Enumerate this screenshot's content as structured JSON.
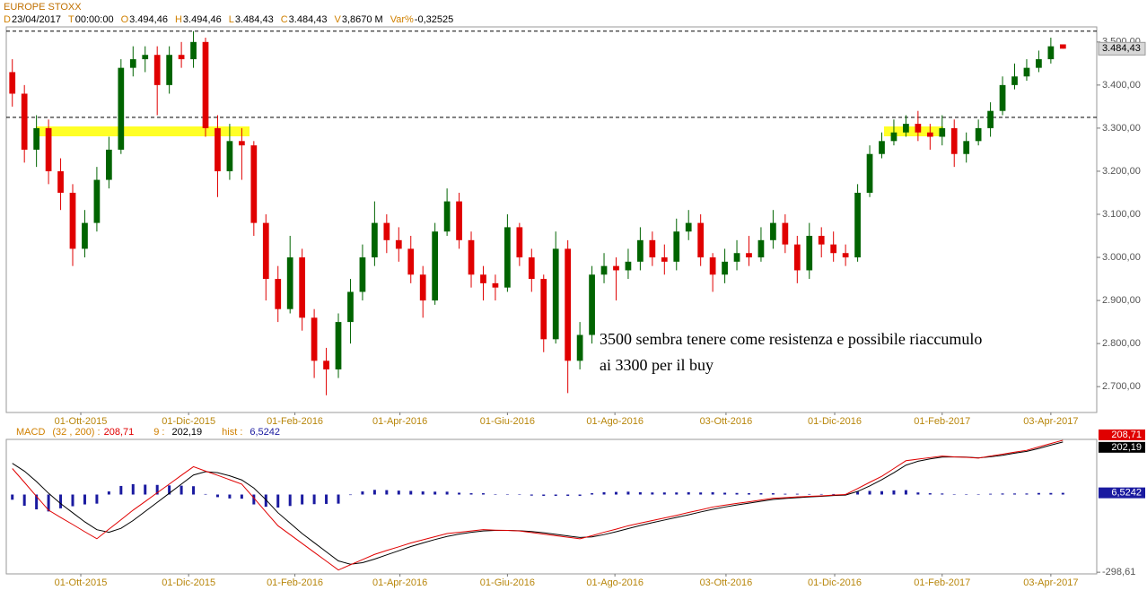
{
  "header": {
    "title": "EUROPE STOXX",
    "fields": [
      {
        "key": "D",
        "value": "23/04/2017"
      },
      {
        "key": "T",
        "value": "00:00:00"
      },
      {
        "key": "O",
        "value": "3.494,46"
      },
      {
        "key": "H",
        "value": "3.494,46"
      },
      {
        "key": "L",
        "value": "3.484,43"
      },
      {
        "key": "C",
        "value": "3.484,43"
      },
      {
        "key": "V",
        "value": "3,8670 M"
      },
      {
        "key": "Var%",
        "value": "-0,32525"
      }
    ]
  },
  "chart_data": [
    {
      "type": "candlestick",
      "up_color": "#006400",
      "down_color": "#e00000",
      "xlim": [
        -0.5,
        89.8
      ],
      "ylim": [
        2640,
        3535
      ],
      "xticks": [
        {
          "value": 5.67,
          "label": "01-Ott-2015"
        },
        {
          "value": 14.6,
          "label": "01-Dic-2015"
        },
        {
          "value": 23.4,
          "label": "01-Feb-2016"
        },
        {
          "value": 32.1,
          "label": "01-Apr-2016"
        },
        {
          "value": 41.0,
          "label": "01-Giu-2016"
        },
        {
          "value": 49.9,
          "label": "01-Ago-2016"
        },
        {
          "value": 59.1,
          "label": "03-Ott-2016"
        },
        {
          "value": 68.1,
          "label": "01-Dic-2016"
        },
        {
          "value": 77.0,
          "label": "01-Feb-2017"
        },
        {
          "value": 86.0,
          "label": "03-Apr-2017"
        }
      ],
      "yticks": [
        {
          "value": 2700,
          "label": "2.700,00"
        },
        {
          "value": 2800,
          "label": "2.800,00"
        },
        {
          "value": 2900,
          "label": "2.900,00"
        },
        {
          "value": 3000,
          "label": "3.000,00"
        },
        {
          "value": 3100,
          "label": "3.100,00"
        },
        {
          "value": 3200,
          "label": "3.200,00"
        },
        {
          "value": 3300,
          "label": "3.300,00"
        },
        {
          "value": 3400,
          "label": "3.400,00"
        },
        {
          "value": 3500,
          "label": "3.500,00"
        }
      ],
      "levels": [
        3525,
        3325
      ],
      "last_label": "3.484,43",
      "annotation": [
        "3500 sembra tenere come resistenza e possibile riaccumulo",
        "ai 3300 per il buy"
      ],
      "open": [
        3430,
        3380,
        3250,
        3300,
        3200,
        3150,
        3020,
        3080,
        3180,
        3250,
        3440,
        3460,
        3470,
        3400,
        3470,
        3460,
        3500,
        3300,
        3200,
        3270,
        3260,
        3080,
        2950,
        2880,
        3000,
        2860,
        2760,
        2740,
        2850,
        2920,
        3000,
        3080,
        3040,
        3020,
        2960,
        2900,
        3060,
        3130,
        3040,
        2960,
        2940,
        2930,
        3070,
        3000,
        2950,
        2810,
        3020,
        2760,
        2820,
        2960,
        2980,
        2970,
        2990,
        3040,
        3000,
        2990,
        3060,
        3080,
        3000,
        2960,
        2990,
        3010,
        3000,
        3040,
        3080,
        3030,
        2970,
        3050,
        3030,
        3010,
        3000,
        3150,
        3240,
        3270,
        3290,
        3310,
        3290,
        3280,
        3300,
        3240,
        3270,
        3300,
        3340,
        3400,
        3420,
        3440,
        3460,
        3494.46
      ],
      "high": [
        3460,
        3400,
        3330,
        3320,
        3230,
        3170,
        3110,
        3210,
        3280,
        3460,
        3490,
        3490,
        3490,
        3490,
        3500,
        3525,
        3510,
        3330,
        3310,
        3300,
        3270,
        3100,
        2980,
        3050,
        3020,
        2880,
        2790,
        2870,
        2950,
        3030,
        3130,
        3100,
        3070,
        3050,
        2980,
        3080,
        3160,
        3150,
        3060,
        2980,
        2960,
        3100,
        3080,
        3020,
        2960,
        3060,
        3040,
        2850,
        2980,
        3010,
        3000,
        3020,
        3070,
        3060,
        3030,
        3090,
        3110,
        3100,
        3010,
        3020,
        3040,
        3050,
        3070,
        3110,
        3100,
        3050,
        3080,
        3070,
        3060,
        3030,
        3170,
        3260,
        3290,
        3320,
        3330,
        3340,
        3310,
        3330,
        3320,
        3290,
        3320,
        3360,
        3420,
        3450,
        3460,
        3480,
        3510,
        3494.46
      ],
      "low": [
        3350,
        3220,
        3210,
        3170,
        3110,
        2980,
        3000,
        3060,
        3160,
        3240,
        3420,
        3430,
        3330,
        3380,
        3440,
        3440,
        3280,
        3140,
        3180,
        3180,
        3050,
        2900,
        2850,
        2870,
        2830,
        2720,
        2680,
        2720,
        2800,
        2900,
        2980,
        3010,
        2990,
        2940,
        2860,
        2890,
        3050,
        3020,
        2930,
        2900,
        2900,
        2920,
        2980,
        2920,
        2780,
        2800,
        2685,
        2740,
        2800,
        2940,
        2900,
        2950,
        2970,
        2980,
        2960,
        2970,
        3040,
        2980,
        2920,
        2940,
        2970,
        2980,
        2990,
        3020,
        3010,
        2940,
        2950,
        3000,
        2990,
        2980,
        2990,
        3140,
        3230,
        3260,
        3280,
        3270,
        3250,
        3260,
        3210,
        3220,
        3260,
        3280,
        3330,
        3390,
        3410,
        3430,
        3450,
        3484.43
      ],
      "close": [
        3380,
        3250,
        3300,
        3200,
        3150,
        3020,
        3080,
        3180,
        3250,
        3440,
        3460,
        3470,
        3400,
        3470,
        3460,
        3500,
        3300,
        3200,
        3270,
        3260,
        3080,
        2950,
        2880,
        3000,
        2860,
        2760,
        2740,
        2850,
        2920,
        3000,
        3080,
        3040,
        3020,
        2960,
        2900,
        3060,
        3130,
        3040,
        2960,
        2940,
        2930,
        3070,
        3000,
        2950,
        2810,
        3020,
        2760,
        2820,
        2960,
        2980,
        2970,
        2990,
        3040,
        3000,
        2990,
        3060,
        3080,
        3000,
        2960,
        2990,
        3010,
        3000,
        3040,
        3080,
        3030,
        2970,
        3050,
        3030,
        3010,
        3000,
        3150,
        3240,
        3270,
        3290,
        3310,
        3290,
        3280,
        3300,
        3240,
        3270,
        3300,
        3340,
        3400,
        3420,
        3440,
        3460,
        3490,
        3484.43
      ]
    },
    {
      "type": "macd",
      "xlim": [
        -0.5,
        89.8
      ],
      "ylim": [
        -305,
        212
      ],
      "yticks": [
        {
          "value": -298.61,
          "label": "-298,61"
        }
      ],
      "series": [
        {
          "name": "MACD",
          "params": "(32 , 200) :",
          "color": "#e00000",
          "value_label": "208,71",
          "values": [
            100,
            47,
            -7,
            -60,
            -88,
            -115,
            -143,
            -170,
            -133,
            -97,
            -60,
            -27,
            7,
            40,
            74,
            107,
            90,
            74,
            57,
            40,
            -13,
            -67,
            -120,
            -154,
            -188,
            -222,
            -256,
            -290,
            -270,
            -250,
            -230,
            -215,
            -201,
            -186,
            -174,
            -162,
            -150,
            -145,
            -140,
            -135,
            -137,
            -138,
            -140,
            -146,
            -152,
            -158,
            -164,
            -170,
            -158,
            -145,
            -133,
            -120,
            -110,
            -100,
            -90,
            -80,
            -69,
            -59,
            -48,
            -41,
            -34,
            -28,
            -21,
            -14,
            -12,
            -9,
            -7,
            -5,
            -2,
            0,
            23,
            47,
            70,
            100,
            130,
            136,
            142,
            148,
            145,
            143,
            140,
            148,
            155,
            163,
            170,
            183,
            196,
            208.71
          ]
        },
        {
          "name": "9 :",
          "color": "#000000",
          "value_label": "202,19",
          "values": [
            120,
            90,
            50,
            5,
            -35,
            -70,
            -105,
            -135,
            -145,
            -130,
            -100,
            -65,
            -30,
            5,
            40,
            75,
            88,
            84,
            72,
            56,
            25,
            -20,
            -70,
            -110,
            -150,
            -185,
            -220,
            -255,
            -268,
            -262,
            -248,
            -232,
            -216,
            -200,
            -186,
            -173,
            -161,
            -152,
            -145,
            -140,
            -138,
            -138,
            -139,
            -142,
            -147,
            -153,
            -159,
            -165,
            -163,
            -154,
            -143,
            -131,
            -119,
            -108,
            -98,
            -88,
            -78,
            -67,
            -57,
            -48,
            -40,
            -33,
            -26,
            -19,
            -15,
            -12,
            -9,
            -7,
            -4,
            -2,
            12,
            33,
            57,
            84,
            113,
            128,
            137,
            144,
            145,
            144,
            141,
            145,
            151,
            159,
            166,
            177,
            190,
            202.19
          ]
        },
        {
          "name": "hist :",
          "color": "#1a1aa0",
          "value_label": "6,5242",
          "values": [
            -20,
            -43,
            -57,
            -65,
            -53,
            -45,
            -38,
            -35,
            12,
            33,
            40,
            38,
            37,
            35,
            34,
            32,
            2,
            -10,
            -15,
            -16,
            -38,
            -47,
            -50,
            -44,
            -38,
            -37,
            -36,
            -35,
            -2,
            12,
            18,
            17,
            15,
            14,
            12,
            11,
            11,
            7,
            5,
            5,
            1,
            0,
            -1,
            -4,
            -5,
            -5,
            -5,
            -5,
            5,
            9,
            10,
            11,
            9,
            8,
            8,
            8,
            9,
            8,
            9,
            7,
            6,
            5,
            5,
            5,
            3,
            3,
            2,
            2,
            2,
            2,
            11,
            14,
            13,
            16,
            17,
            8,
            5,
            4,
            0,
            -1,
            -1,
            3,
            4,
            4,
            4,
            6,
            6,
            6.5242
          ]
        }
      ]
    }
  ]
}
